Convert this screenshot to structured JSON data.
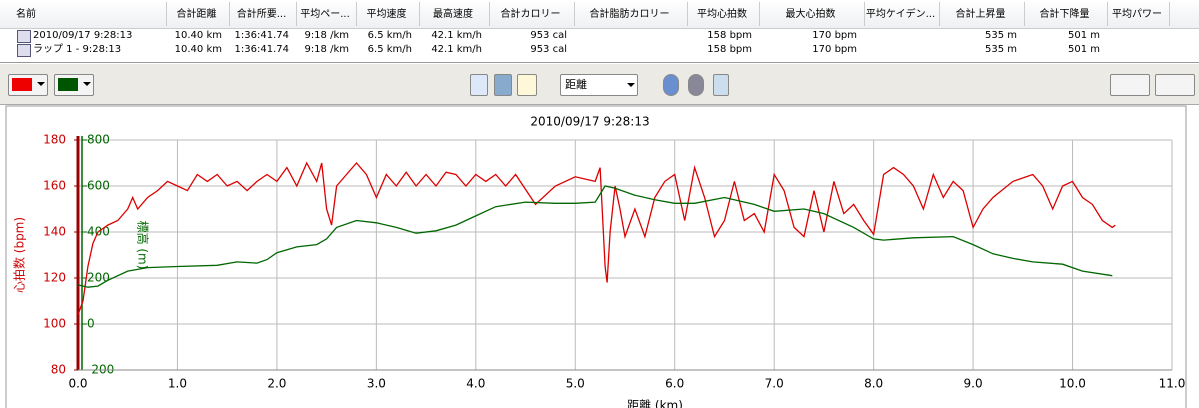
{
  "table": {
    "columns": [
      "名前",
      "合計距離",
      "合計所要...",
      "平均ペー...",
      "平均速度",
      "最高速度",
      "合計カロリー",
      "合計脂肪カロリー",
      "平均心拍数",
      "最大心拍数",
      "平均ケイデン...",
      "合計上昇量",
      "合計下降量",
      "平均パワー"
    ],
    "rows": [
      [
        "2010/09/17 9:28:13",
        "10.40 km",
        "1:36:41.74",
        "9:18 /km",
        "6.5 km/h",
        "42.1 km/h",
        "953 cal",
        null,
        "158 bpm",
        "170 bpm",
        null,
        "535 m",
        "501 m",
        null
      ],
      [
        "ラップ 1 - 9:28:13",
        "10.40 km",
        "1:36:41.74",
        "9:18 /km",
        "6.5 km/h",
        "42.1 km/h",
        "953 cal",
        null,
        "158 bpm",
        "170 bpm",
        null,
        "535 m",
        "501 m",
        null
      ]
    ]
  },
  "toolbar": {
    "x_axis_select": "距離"
  },
  "chart_data": {
    "type": "line",
    "title": "2010/09/17 9:28:13",
    "xlabel": "距離 (km)",
    "ylabel": "心拍数 (bpm)",
    "y2label": "標高 (m)",
    "xlim": [
      0,
      11
    ],
    "xticks": [
      {
        "value": 0,
        "label": "0.0"
      },
      {
        "value": 1,
        "label": "1.0"
      },
      {
        "value": 2,
        "label": "2.0"
      },
      {
        "value": 3,
        "label": "3.0"
      },
      {
        "value": 4,
        "label": "4.0"
      },
      {
        "value": 5,
        "label": "5.0"
      },
      {
        "value": 6,
        "label": "6.0"
      },
      {
        "value": 7,
        "label": "7.0"
      },
      {
        "value": 8,
        "label": "8.0"
      },
      {
        "value": 9,
        "label": "9.0"
      },
      {
        "value": 10,
        "label": "10.0"
      },
      {
        "value": 11,
        "label": "11.0"
      }
    ],
    "ylim": [
      80,
      180
    ],
    "yticks": [
      80,
      100,
      120,
      140,
      160,
      180
    ],
    "y2lim": [
      -200,
      800
    ],
    "y2ticks": [
      -200,
      0,
      200,
      400,
      600,
      800
    ],
    "grid": true,
    "series": [
      {
        "color": "#dd0000",
        "x": [
          0,
          0.05,
          0.1,
          0.15,
          0.2,
          0.3,
          0.4,
          0.5,
          0.55,
          0.6,
          0.7,
          0.8,
          0.9,
          1.0,
          1.1,
          1.2,
          1.3,
          1.4,
          1.5,
          1.6,
          1.7,
          1.8,
          1.9,
          2.0,
          2.1,
          2.2,
          2.3,
          2.4,
          2.45,
          2.5,
          2.55,
          2.6,
          2.7,
          2.8,
          2.9,
          3.0,
          3.1,
          3.2,
          3.3,
          3.4,
          3.5,
          3.6,
          3.7,
          3.8,
          3.9,
          4.0,
          4.1,
          4.2,
          4.3,
          4.4,
          4.6,
          4.8,
          5.0,
          5.2,
          5.25,
          5.3,
          5.32,
          5.35,
          5.4,
          5.45,
          5.5,
          5.6,
          5.7,
          5.8,
          5.9,
          6.0,
          6.1,
          6.2,
          6.3,
          6.4,
          6.5,
          6.6,
          6.7,
          6.8,
          6.9,
          7.0,
          7.1,
          7.2,
          7.3,
          7.4,
          7.5,
          7.6,
          7.7,
          7.8,
          7.9,
          8.0,
          8.1,
          8.2,
          8.3,
          8.4,
          8.5,
          8.6,
          8.7,
          8.8,
          8.9,
          9.0,
          9.1,
          9.2,
          9.4,
          9.6,
          9.7,
          9.8,
          9.9,
          10.0,
          10.1,
          10.2,
          10.3,
          10.4,
          10.43
        ],
        "values": [
          104,
          110,
          125,
          135,
          140,
          143,
          145,
          150,
          155,
          150,
          155,
          158,
          162,
          160,
          158,
          165,
          162,
          165,
          160,
          162,
          158,
          162,
          165,
          162,
          168,
          160,
          170,
          162,
          170,
          150,
          143,
          160,
          165,
          170,
          165,
          155,
          165,
          160,
          166,
          160,
          165,
          160,
          166,
          165,
          160,
          165,
          162,
          165,
          160,
          165,
          152,
          160,
          164,
          162,
          168,
          125,
          118,
          140,
          160,
          150,
          138,
          150,
          138,
          155,
          162,
          165,
          145,
          168,
          155,
          138,
          145,
          162,
          145,
          148,
          140,
          165,
          158,
          142,
          138,
          158,
          140,
          162,
          148,
          152,
          145,
          139,
          165,
          168,
          165,
          160,
          150,
          165,
          155,
          162,
          158,
          142,
          150,
          155,
          162,
          165,
          160,
          150,
          160,
          162,
          155,
          152,
          145,
          142,
          143
        ]
      },
      {
        "color": "#006600",
        "axis": "y2",
        "x": [
          0,
          0.1,
          0.2,
          0.3,
          0.5,
          0.7,
          1.0,
          1.4,
          1.6,
          1.8,
          1.9,
          2.0,
          2.2,
          2.4,
          2.5,
          2.6,
          2.8,
          3.0,
          3.2,
          3.4,
          3.6,
          3.8,
          4.0,
          4.2,
          4.5,
          4.8,
          5.0,
          5.2,
          5.3,
          5.4,
          5.6,
          5.8,
          6.0,
          6.2,
          6.5,
          6.8,
          7.0,
          7.3,
          7.5,
          7.8,
          8.0,
          8.1,
          8.4,
          8.8,
          9.0,
          9.2,
          9.4,
          9.6,
          9.9,
          10.1,
          10.4
        ],
        "values": [
          170,
          160,
          165,
          190,
          230,
          245,
          250,
          255,
          270,
          265,
          280,
          310,
          335,
          345,
          370,
          420,
          450,
          440,
          420,
          395,
          405,
          430,
          470,
          510,
          530,
          525,
          525,
          530,
          600,
          590,
          560,
          540,
          525,
          525,
          550,
          520,
          490,
          500,
          480,
          420,
          370,
          365,
          375,
          380,
          345,
          305,
          285,
          270,
          260,
          230,
          210
        ]
      }
    ]
  }
}
